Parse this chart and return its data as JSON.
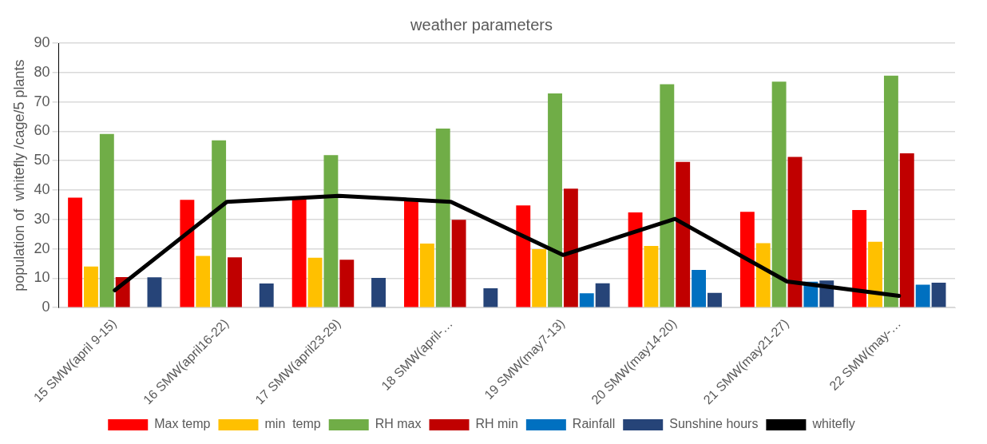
{
  "chart_data": {
    "type": "bar",
    "title": "weather parameters",
    "ylabel": "population of  whitefly /cage/5 plants",
    "categories": [
      "15 SMW(april 9-15)",
      "16 SMW(april16-22)",
      "17 SMW(april23-29)",
      "18 SMW(april-…",
      "19 SMW(may7-13)",
      "20 SMW(may14-20)",
      "21 SMW(may21-27)",
      "22 SMW(may-…"
    ],
    "series": [
      {
        "name": "Max temp",
        "color": "#ff0000",
        "values": [
          37.4,
          36.7,
          37,
          36.5,
          34.8,
          32.4,
          32.6,
          33.2
        ]
      },
      {
        "name": "min  temp",
        "color": "#ffc000",
        "values": [
          14,
          17.6,
          17,
          21.8,
          19.9,
          21,
          21.9,
          22.4
        ]
      },
      {
        "name": "RH max",
        "color": "#70ad47",
        "values": [
          59.1,
          56.9,
          51.9,
          60.9,
          72.9,
          76,
          76.9,
          78.9
        ]
      },
      {
        "name": "RH min",
        "color": "#c00000",
        "values": [
          10.4,
          17.1,
          16.3,
          29.9,
          40.5,
          49.6,
          51.3,
          52.5
        ]
      },
      {
        "name": "Rainfall",
        "color": "#0070c0",
        "values": [
          0,
          0,
          0,
          0,
          4.9,
          12.8,
          8.8,
          7.8
        ]
      },
      {
        "name": "Sunshine hours",
        "color": "#264478",
        "values": [
          10.3,
          8.2,
          10.1,
          6.6,
          8.3,
          5,
          9.2,
          8.5
        ]
      },
      {
        "name": "whitefly",
        "type": "line",
        "color": "#000000",
        "values": [
          5.9,
          36,
          38,
          36,
          17.9,
          30.2,
          8.9,
          4
        ]
      }
    ],
    "ylim": [
      0,
      90
    ],
    "yticks": [
      0,
      10,
      20,
      30,
      40,
      50,
      60,
      70,
      80,
      90
    ],
    "grid": "y",
    "legend": "bottom",
    "marker": "none"
  }
}
